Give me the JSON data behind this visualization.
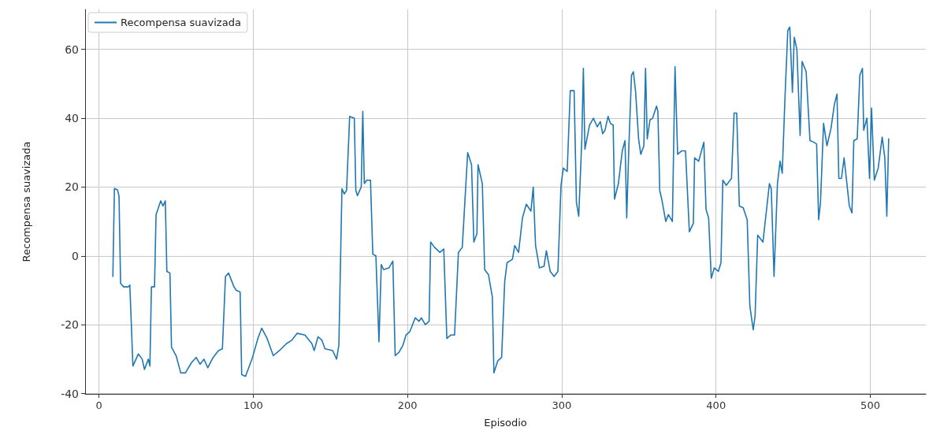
{
  "chart_data": {
    "type": "line",
    "xlabel": "Episodio",
    "ylabel": "Recompensa suavizada",
    "xlim": [
      -9,
      536
    ],
    "ylim": [
      -40.1,
      71.6
    ],
    "xticks": [
      0,
      100,
      200,
      300,
      400,
      500
    ],
    "yticks": [
      -40,
      -20,
      0,
      20,
      40,
      60
    ],
    "grid": true,
    "legend": "top left",
    "marker": "none",
    "line_style": "solid",
    "series": [
      {
        "name": "Recompensa suavizada",
        "color": "#1f77b4",
        "x": [
          9,
          10,
          12,
          13,
          14,
          16,
          19,
          20,
          22,
          25.5,
          28,
          29.5,
          32,
          33,
          34,
          36,
          37,
          40,
          41.5,
          43,
          44,
          46,
          47,
          50,
          53,
          56,
          60,
          63,
          65.5,
          68,
          70.5,
          74,
          77.5,
          80,
          82,
          84,
          87.5,
          89,
          91.5,
          92.5,
          95,
          99.5,
          103,
          105.5,
          109,
          113,
          117,
          121.5,
          125,
          128.5,
          133.5,
          138,
          139.5,
          142,
          144.5,
          146.5,
          151.5,
          154,
          155.5,
          157.5,
          159,
          160.5,
          162.5,
          165.5,
          166.5,
          167.5,
          170,
          171,
          172,
          173.5,
          176,
          177.5,
          179.5,
          181.5,
          183,
          184.5,
          188,
          190.5,
          192,
          194.5,
          197,
          199,
          201.5,
          205,
          207.5,
          209,
          211.5,
          214,
          215,
          217.5,
          221,
          223.5,
          225.5,
          228,
          230.5,
          233,
          235.5,
          239,
          241.5,
          243,
          245,
          245.7,
          248.5,
          250,
          252.5,
          255,
          256,
          258.5,
          261,
          263,
          264.5,
          268,
          269.5,
          272,
          274.5,
          277,
          280,
          281.5,
          283,
          285.5,
          288.5,
          290,
          292.5,
          295,
          297.5,
          299.5,
          301,
          303.5,
          305.5,
          308,
          309.5,
          311,
          313,
          314,
          315,
          318,
          320.5,
          323,
          325,
          326.5,
          328,
          330,
          331.5,
          333.3,
          334.2,
          336.7,
          339.2,
          341,
          342.1,
          343.5,
          345.2,
          346.4,
          347.8,
          349.8,
          351.2,
          353.2,
          354.3,
          355.4,
          357.2,
          358.9,
          361.4,
          362.3,
          363.5,
          364.8,
          367.4,
          369.1,
          371.7,
          373.4,
          375.1,
          377.6,
          380.2,
          382.7,
          385.3,
          386.1,
          388.7,
          392.1,
          393.5,
          395.2,
          396.9,
          398.9,
          401.5,
          403.2,
          404.4,
          406.6,
          410,
          411.7,
          413.4,
          415.1,
          417.6,
          420.2,
          421.9,
          424.1,
          425.3,
          427,
          430.4,
          434.6,
          435.8,
          437.6,
          439.8,
          441.5,
          442.9,
          444.6,
          446.5,
          447.8,
          449.5,
          450.7,
          452.4,
          454.5,
          455.8,
          458.4,
          460.9,
          463.5,
          465.2,
          466.5,
          467.7,
          469.7,
          471.9,
          474.5,
          476.7,
          478.4,
          479.6,
          481.3,
          483,
          486.4,
          488.1,
          489.3,
          491.5,
          493.2,
          494.9,
          495.7,
          497.8,
          499.5,
          500.8,
          502.6,
          505.1,
          507.7,
          509.4,
          510.7,
          511.9
        ],
        "values": [
          -6,
          19.6,
          19.2,
          17.3,
          -8,
          -9,
          -9,
          -8.5,
          -32,
          -28.5,
          -30,
          -33,
          -30,
          -32,
          -9,
          -9,
          12,
          16,
          14.5,
          16,
          -4.5,
          -5,
          -26.5,
          -29,
          -34,
          -34,
          -31,
          -29.5,
          -31.5,
          -30,
          -32.5,
          -29.5,
          -27.5,
          -27,
          -6,
          -5,
          -9,
          -10,
          -10.5,
          -34.5,
          -35,
          -29.5,
          -24,
          -21,
          -24,
          -29,
          -27.5,
          -25.5,
          -24.5,
          -22.5,
          -23,
          -25.5,
          -27.5,
          -23.5,
          -24.5,
          -27,
          -27.5,
          -30,
          -26,
          19.5,
          18,
          19,
          40.5,
          40,
          19,
          17.5,
          20,
          42,
          21,
          22,
          22,
          0.5,
          0,
          -25,
          -2.5,
          -4,
          -3.5,
          -1.5,
          -29,
          -28,
          -26,
          -23,
          -22,
          -18,
          -19,
          -18,
          -20,
          -19,
          4,
          2.5,
          1,
          2,
          -24,
          -23,
          -23,
          1,
          2.5,
          30,
          26.5,
          4,
          6.5,
          26.5,
          21,
          -4,
          -5.5,
          -12,
          -34,
          -30.5,
          -29.5,
          -7.5,
          -2,
          -1,
          3,
          1,
          11,
          15,
          13,
          20,
          3,
          -3.5,
          -3,
          1.5,
          -4.5,
          -6,
          -4.5,
          20.5,
          25.5,
          24.5,
          48,
          48,
          15.5,
          11.5,
          34,
          54.5,
          31,
          38,
          40,
          37.5,
          39,
          35.5,
          36.5,
          40.5,
          38.5,
          38,
          16.5,
          21,
          30.5,
          33.5,
          11,
          32,
          52.5,
          53.5,
          48,
          34,
          29.5,
          32,
          54.5,
          34,
          39.5,
          40,
          43.5,
          42,
          19,
          16.5,
          10,
          12,
          10,
          55,
          29.5,
          30.5,
          30.5,
          7,
          9.5,
          28.5,
          27.5,
          33,
          13.5,
          11,
          -6.5,
          -3.5,
          -4.5,
          -2,
          22,
          20.5,
          22.5,
          41.5,
          41.5,
          14.5,
          14,
          10.5,
          -14.5,
          -21.5,
          -17.5,
          6,
          4,
          21,
          19.5,
          -6,
          21,
          27.5,
          24,
          45,
          65.5,
          66.5,
          47.5,
          63.5,
          60,
          35,
          56.5,
          53.5,
          33.5,
          33,
          32.5,
          10.5,
          15.5,
          38.5,
          32,
          37,
          44,
          47,
          22.5,
          22.5,
          28.5,
          14.5,
          12.5,
          33.5,
          34,
          52.5,
          54.5,
          36.5,
          40,
          22.5,
          43,
          22,
          25.5,
          34.5,
          28.5,
          11.5,
          34
        ]
      }
    ]
  }
}
